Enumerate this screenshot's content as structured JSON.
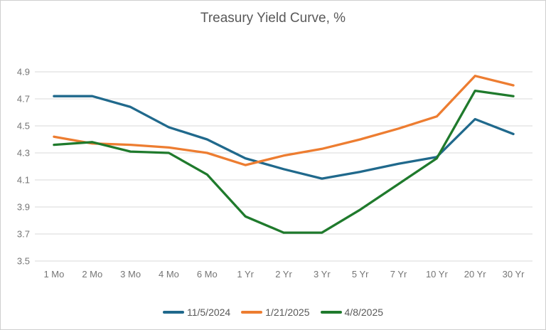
{
  "title": "Treasury Yield Curve, %",
  "colors": {
    "background": "#ffffff",
    "border": "#cfcfcf",
    "gridline": "#d9d9d9",
    "tick_label": "#757575",
    "title_text": "#595959",
    "series_blue": "#20698c",
    "series_orange": "#ed7d31",
    "series_green": "#1f7a2c"
  },
  "chart_data": {
    "type": "line",
    "title": "Treasury Yield Curve, %",
    "xlabel": "",
    "ylabel": "",
    "grid": true,
    "legend_position": "bottom",
    "ylim": [
      3.5,
      4.9
    ],
    "y_ticks": [
      "4.9",
      "4.7",
      "4.5",
      "4.3",
      "4.1",
      "3.9",
      "3.7",
      "3.5"
    ],
    "categories": [
      "1 Mo",
      "2 Mo",
      "3 Mo",
      "4 Mo",
      "6 Mo",
      "1 Yr",
      "2 Yr",
      "3 Yr",
      "5 Yr",
      "7 Yr",
      "10 Yr",
      "20 Yr",
      "30 Yr"
    ],
    "series": [
      {
        "name": "11/5/2024",
        "color": "#20698c",
        "values": [
          4.72,
          4.72,
          4.64,
          4.49,
          4.4,
          4.26,
          4.18,
          4.11,
          4.16,
          4.22,
          4.27,
          4.55,
          4.44
        ]
      },
      {
        "name": "1/21/2025",
        "color": "#ed7d31",
        "values": [
          4.42,
          4.37,
          4.36,
          4.34,
          4.3,
          4.21,
          4.28,
          4.33,
          4.4,
          4.48,
          4.57,
          4.87,
          4.8
        ]
      },
      {
        "name": "4/8/2025",
        "color": "#1f7a2c",
        "values": [
          4.36,
          4.38,
          4.31,
          4.3,
          4.14,
          3.83,
          3.71,
          3.71,
          3.88,
          4.07,
          4.26,
          4.76,
          4.72
        ]
      }
    ]
  }
}
